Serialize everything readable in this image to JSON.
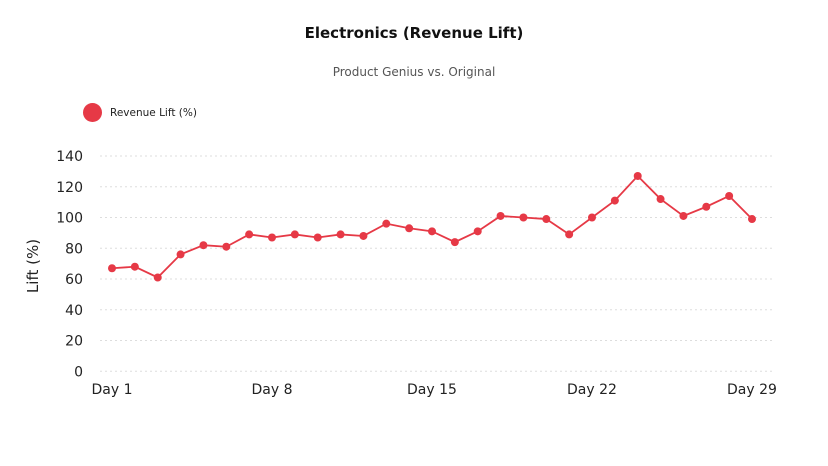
{
  "chart_data": {
    "type": "line",
    "title": "Electronics (Revenue Lift)",
    "subtitle": "Product Genius vs. Original",
    "xlabel": "",
    "ylabel": "Lift (%)",
    "ylim": [
      0,
      140
    ],
    "yticks": [
      "0",
      "20",
      "40",
      "60",
      "80",
      "100",
      "120",
      "140"
    ],
    "xticks": [
      "Day 1",
      "Day 8",
      "Day 15",
      "Day 22",
      "Day 29"
    ],
    "x": [
      1,
      2,
      3,
      4,
      5,
      6,
      7,
      8,
      9,
      10,
      11,
      12,
      13,
      14,
      15,
      16,
      17,
      18,
      19,
      20,
      21,
      22,
      23,
      24,
      25,
      26,
      27,
      28,
      29
    ],
    "grid": true,
    "legend_position": "top-left",
    "series": [
      {
        "name": "Revenue Lift (%)",
        "color": "#e63946",
        "values": [
          67,
          68,
          61,
          76,
          82,
          81,
          89,
          87,
          89,
          87,
          89,
          88,
          96,
          93,
          91,
          84,
          91,
          101,
          100,
          99,
          89,
          100,
          111,
          127,
          112,
          101,
          107,
          114,
          99
        ]
      }
    ]
  }
}
